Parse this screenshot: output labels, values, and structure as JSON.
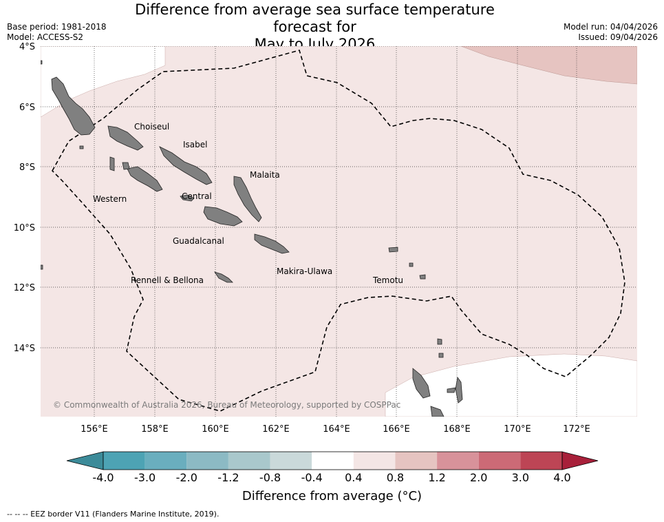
{
  "header": {
    "title_line1": "Difference from average sea surface temperature forecast for",
    "title_line2": "May to July 2026",
    "base_period": "Base period: 1981-2018",
    "model": "Model: ACCESS-S2",
    "model_run": "Model run: 04/04/2026",
    "issued": "Issued: 09/04/2026"
  },
  "map": {
    "lat_labels": [
      "4°S",
      "6°S",
      "8°S",
      "10°S",
      "12°S",
      "14°S"
    ],
    "lon_labels": [
      "156°E",
      "158°E",
      "160°E",
      "162°E",
      "164°E",
      "166°E",
      "168°E",
      "170°E",
      "172°E"
    ],
    "provinces": [
      "Choiseul",
      "Isabel",
      "Malaita",
      "Western",
      "Central",
      "Guadalcanal",
      "Makira-Ulawa",
      "Rennell & Bellona",
      "Temotu"
    ],
    "copyright": "© Commonwealth of Australia 2026, Bureau of Meteorology, supported by COSPPac",
    "colors": {
      "anom_0_4_0_8": "#f4e6e5",
      "anom_0_8_1_2": "#e6c4c1",
      "anom_neutral": "#ffffff",
      "land": "#808080"
    }
  },
  "colorbar": {
    "ticks": [
      "-4.0",
      "-3.0",
      "-2.0",
      "-1.2",
      "-0.8",
      "-0.4",
      "0.4",
      "0.8",
      "1.2",
      "2.0",
      "3.0",
      "4.0"
    ],
    "colors": [
      "#3c8b99",
      "#4da3b4",
      "#6aaebe",
      "#8cbac4",
      "#a9c8cc",
      "#cad9da",
      "#ffffff",
      "#f4e6e5",
      "#e6c4c1",
      "#d8929a",
      "#cc6a76",
      "#bd4555",
      "#a8203a"
    ],
    "label": "Difference from average (°C)"
  },
  "footnote": "--  --  -- EEZ border V11 (Flanders Marine Institute, 2019)."
}
